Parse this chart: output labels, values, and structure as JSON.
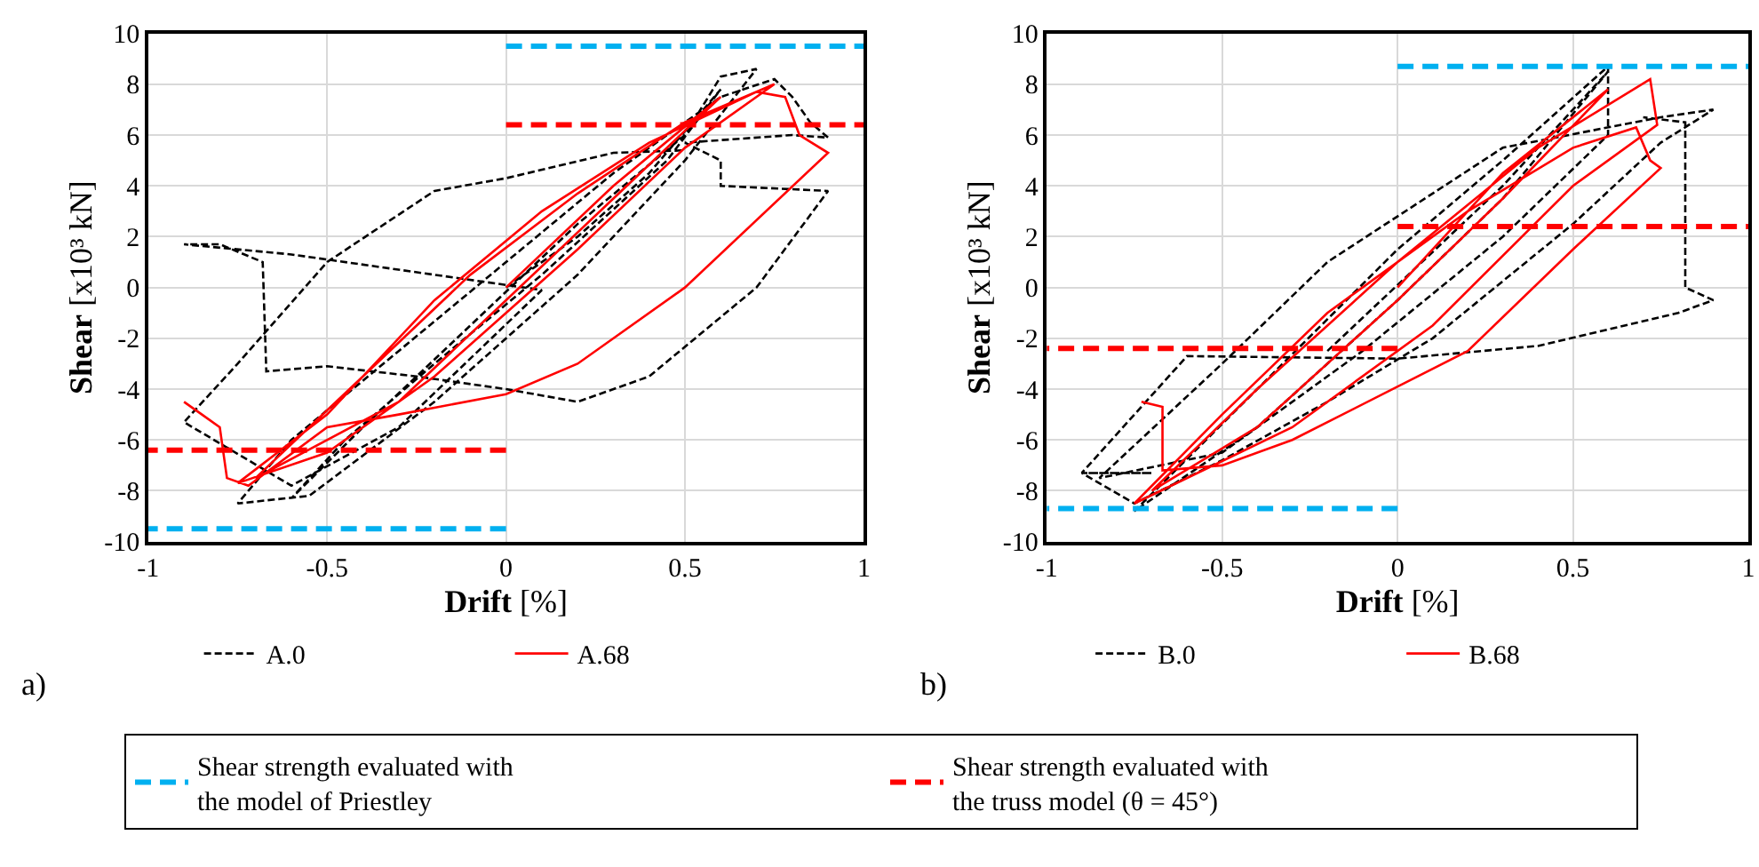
{
  "chart_data": [
    {
      "type": "line",
      "xlabel": "Drift [%]",
      "ylabel": "Shear [x10³ kN]",
      "xlim": [
        -1,
        1
      ],
      "xticks": [
        -1,
        -0.5,
        0,
        0.5,
        1
      ],
      "ylim": [
        -10,
        10
      ],
      "yticks": [
        -10,
        -8,
        -6,
        -4,
        -2,
        0,
        2,
        4,
        6,
        8,
        10
      ],
      "grid": true,
      "legend": "bottom",
      "annotations": [
        "a)"
      ],
      "series": [
        {
          "name": "A.0",
          "color": "#000000",
          "line_style": "dashed",
          "x": [
            0,
            0.2,
            0.4,
            0.6,
            0.45,
            0.1,
            -0.2,
            -0.45,
            -0.6,
            -0.4,
            -0.1,
            0.2,
            0.5,
            0.6,
            0.7,
            0.5,
            0.2,
            -0.2,
            -0.55,
            -0.75,
            -0.6,
            -0.3,
            0,
            0.3,
            0.6,
            0.75,
            0.8,
            0.85,
            0.9,
            0.8,
            0.5,
            0.6,
            0.6,
            0.9,
            0.7,
            0.4,
            0.2,
            0,
            -0.25,
            -0.5,
            -0.67,
            -0.68,
            -0.8,
            -0.9,
            -0.6,
            0.1,
            -0.3,
            -0.6,
            -0.9,
            -0.75,
            -0.5,
            -0.2,
            0,
            0.3,
            0.5
          ],
          "values": [
            0,
            2,
            4.5,
            7.8,
            5,
            0.5,
            -3,
            -6,
            -8.3,
            -5.5,
            -1.5,
            2.5,
            6,
            8.3,
            8.6,
            5,
            0.5,
            -4.5,
            -8.2,
            -8.5,
            -6,
            -2.5,
            1,
            4.5,
            7.5,
            8.2,
            7.5,
            6.5,
            5.9,
            6,
            5.7,
            5,
            4,
            3.8,
            0,
            -3.5,
            -4.5,
            -4,
            -3.5,
            -3.1,
            -3.3,
            1,
            1.7,
            1.7,
            1.3,
            -0.1,
            -5.5,
            -7.8,
            -5.3,
            -3,
            1,
            3.8,
            4.3,
            5.3,
            5.4
          ]
        },
        {
          "name": "A.68",
          "color": "#ff0000",
          "line_style": "solid",
          "x": [
            0,
            0.3,
            0.6,
            0.3,
            0,
            -0.3,
            -0.7,
            -0.4,
            -0.1,
            0.2,
            0.5,
            0.75,
            0.5,
            0.2,
            -0.2,
            -0.5,
            -0.75,
            -0.5,
            -0.2,
            0.1,
            0.4,
            0.7,
            0.78,
            0.82,
            0.9,
            0.5,
            0.2,
            0,
            -0.3,
            -0.5,
            -0.72,
            -0.78,
            -0.8,
            -0.85,
            -0.9
          ],
          "values": [
            0,
            4,
            7.5,
            3.5,
            -0.5,
            -4.5,
            -7.5,
            -3.5,
            0.5,
            3.7,
            6.5,
            8,
            5.5,
            1.5,
            -3.5,
            -6.5,
            -7.7,
            -5,
            -0.5,
            3,
            5.7,
            7.7,
            7.5,
            6,
            5.3,
            0,
            -3,
            -4.2,
            -5,
            -5.5,
            -7.8,
            -7.5,
            -5.5,
            -5,
            -4.5
          ]
        },
        {
          "name": "Shear strength evaluated with\nthe model of Priestley",
          "color": "#00b0f0",
          "line_style": "dashed",
          "x": [
            0,
            1
          ],
          "values": [
            9.5,
            9.5
          ]
        },
        {
          "name": "Shear strength evaluated with\nthe truss model (θ = 45°)",
          "color": "#ff0000",
          "line_style": "dashed",
          "x": [
            0,
            1
          ],
          "values": [
            6.4,
            6.4
          ]
        },
        {
          "color": "#00b0f0",
          "line_style": "dashed",
          "x": [
            0,
            -1
          ],
          "values": [
            -9.5,
            -9.5
          ]
        },
        {
          "color": "#ff0000",
          "line_style": "dashed",
          "x": [
            0,
            -1
          ],
          "values": [
            -6.4,
            -6.4
          ]
        }
      ]
    },
    {
      "type": "line",
      "xlabel": "Drift [%]",
      "ylabel": "Shear [x10³ kN]",
      "xlim": [
        -1,
        1
      ],
      "xticks": [
        -1,
        -0.5,
        0,
        0.5,
        1
      ],
      "ylim": [
        -10,
        10
      ],
      "yticks": [
        -10,
        -8,
        -6,
        -4,
        -2,
        0,
        2,
        4,
        6,
        8,
        10
      ],
      "grid": true,
      "legend": "bottom",
      "annotations": [
        "b)"
      ],
      "series": [
        {
          "name": "B.0",
          "color": "#000000",
          "line_style": "dashed",
          "x": [
            -0.2,
            0.3,
            0.6,
            0.3,
            0,
            -0.4,
            -0.75,
            -0.4,
            0,
            0.3,
            0.6,
            0.6,
            0.3,
            -0.1,
            -0.5,
            -0.85,
            -0.5,
            -0.2,
            0.3,
            0.75,
            0.9,
            0.75,
            0.5,
            0.1,
            -0.2,
            -0.5,
            -0.75,
            -0.9,
            -0.7,
            -0.9,
            -0.6,
            0,
            0.4,
            0.8,
            0.9,
            0.82,
            0.82,
            0.7
          ],
          "values": [
            -2.5,
            4,
            8.5,
            3.5,
            -0.5,
            -5.5,
            -8.8,
            -4,
            1.5,
            5,
            8.7,
            6,
            2,
            -2.5,
            -6.5,
            -7.5,
            -3,
            1,
            5.5,
            6.7,
            7,
            5.7,
            2.5,
            -2,
            -4.5,
            -6.8,
            -8.5,
            -7.3,
            -7.3,
            -7.3,
            -2.7,
            -2.8,
            -2.3,
            -1,
            -0.5,
            0,
            6.5,
            6.7
          ]
        },
        {
          "name": "B.68",
          "color": "#ff0000",
          "line_style": "solid",
          "x": [
            0,
            0.3,
            0.6,
            0.3,
            0,
            -0.4,
            -0.7,
            -0.4,
            0,
            0.4,
            0.72,
            0.74,
            0.5,
            0.1,
            -0.3,
            -0.75,
            -0.5,
            -0.2,
            0.2,
            0.5,
            0.68,
            0.72,
            0.75,
            0.5,
            0.2,
            -0.3,
            -0.5,
            -0.67,
            -0.67,
            -0.73
          ],
          "values": [
            0,
            4.5,
            7.8,
            3.5,
            -0.5,
            -5.5,
            -8,
            -4,
            1,
            5.5,
            8.2,
            6.4,
            4,
            -1.5,
            -5.5,
            -8.5,
            -5,
            -1,
            3,
            5.5,
            6.3,
            5,
            4.7,
            1.5,
            -2.5,
            -6,
            -7,
            -7.2,
            -4.7,
            -4.5
          ]
        },
        {
          "color": "#00b0f0",
          "line_style": "dashed",
          "x": [
            0,
            1
          ],
          "values": [
            8.7,
            8.7
          ]
        },
        {
          "color": "#ff0000",
          "line_style": "dashed",
          "x": [
            0,
            1
          ],
          "values": [
            2.4,
            2.4
          ]
        },
        {
          "color": "#00b0f0",
          "line_style": "dashed",
          "x": [
            0,
            -1
          ],
          "values": [
            -8.7,
            -8.7
          ]
        },
        {
          "color": "#ff0000",
          "line_style": "dashed",
          "x": [
            0,
            -1
          ],
          "values": [
            -2.4,
            -2.4
          ]
        }
      ]
    }
  ]
}
